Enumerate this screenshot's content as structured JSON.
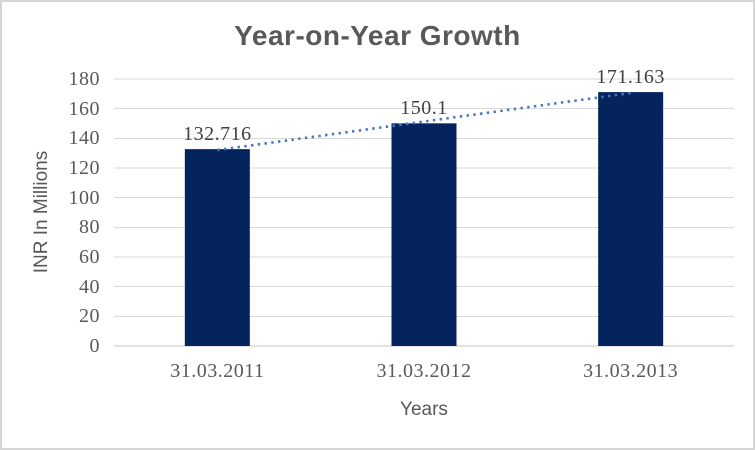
{
  "chart_data": {
    "type": "bar",
    "title": "Year-on-Year Growth",
    "xlabel": "Years",
    "ylabel": "INR In Millions",
    "categories": [
      "31.03.2011",
      "31.03.2012",
      "31.03.2013"
    ],
    "values": [
      132.716,
      150.1,
      171.163
    ],
    "data_labels": [
      "132.716",
      "150.1",
      "171.163"
    ],
    "ylim": [
      0,
      180
    ],
    "ytick_step": 20,
    "grid": true,
    "legend": "none",
    "trendline": {
      "type": "linear",
      "style": "dotted",
      "color": "#4678C0"
    },
    "colors": {
      "bar": "#05235C",
      "gridline": "#D9D9D9",
      "baseline": "#C6C6C6",
      "title_text": "#595959",
      "axis_text": "#595959",
      "data_label_text": "#404040",
      "background": "#FFFFFF",
      "border": "#D6D6D6"
    }
  }
}
